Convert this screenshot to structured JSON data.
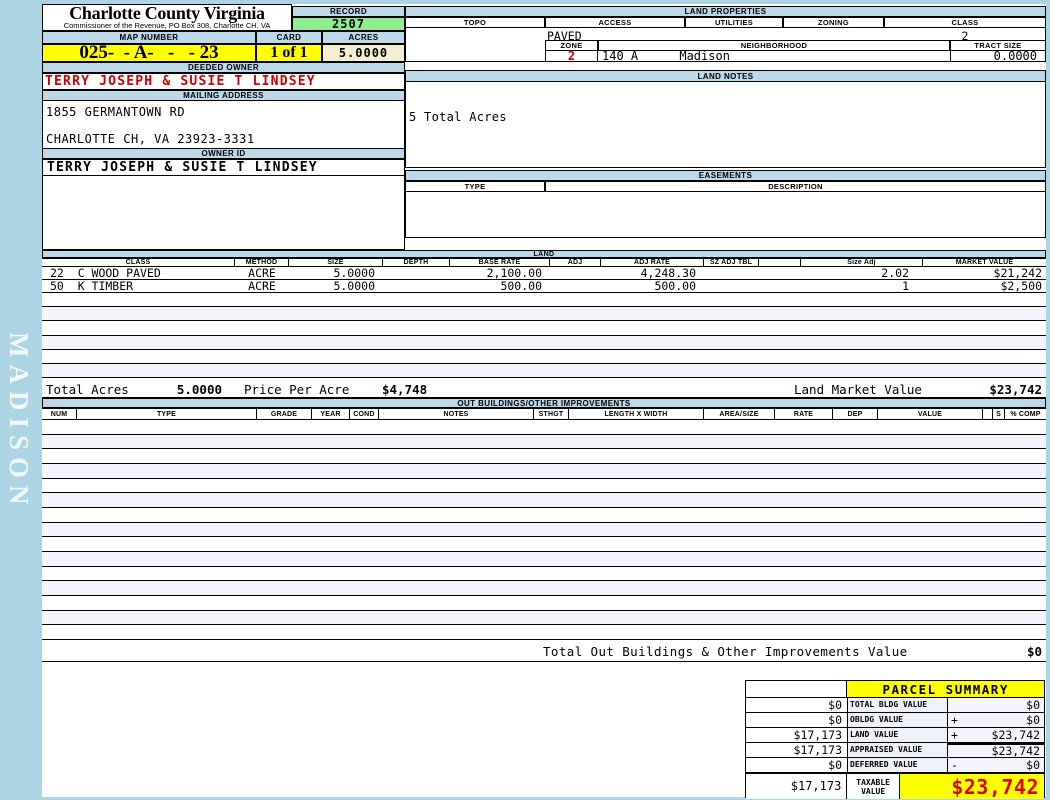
{
  "app": {
    "watermark": "MADISON"
  },
  "colors": {
    "page_blue": "#ABD4E4",
    "bar_blue": "#BDD8E9",
    "record_green": "#90EE90",
    "field_yellow": "#FFFF00",
    "acres_cream": "#F4EFD3",
    "alert_red": "#CC0000",
    "taxable_red": "#E00000",
    "stripe_lavender": "#F3F4FB"
  },
  "header": {
    "county_title": "Charlotte County Virginia",
    "commissioner_line": "Commissioner of the Revenue, PO Box 308, Charlotte CH, VA",
    "record_label": "RECORD",
    "record_value": "2507",
    "map_number_label": "MAP NUMBER",
    "map_number_value": "025-  - A-   -   - 23",
    "card_label": "CARD",
    "card_value": "1 of 1",
    "acres_label": "ACRES",
    "acres_value": "5.0000"
  },
  "owner": {
    "deeded_owner_label": "DEEDED OWNER",
    "deeded_owner_value": "TERRY JOSEPH & SUSIE T LINDSEY",
    "mailing_address_label": "MAILING ADDRESS",
    "address_line1": "1855 GERMANTOWN RD",
    "address_line2": "CHARLOTTE CH, VA 23923-3331",
    "owner_id_label": "OWNER ID",
    "owner_id_value": "TERRY JOSEPH & SUSIE T LINDSEY"
  },
  "land_properties": {
    "section_label": "LAND PROPERTIES",
    "topo_label": "TOPO",
    "access_label": "ACCESS",
    "utilities_label": "UTILITIES",
    "zoning_label": "ZONING",
    "class_label": "CLASS",
    "access_value": "PAVED",
    "class_value": "2",
    "zone_label": "ZONE",
    "neighborhood_label": "NEIGHBORHOOD",
    "tract_size_label": "TRACT SIZE",
    "zone_value": "2",
    "neighborhood_code": "140 A",
    "neighborhood_name": "Madison",
    "tract_size_value": "0.0000"
  },
  "land_notes": {
    "section_label": "LAND NOTES",
    "note": "5 Total Acres"
  },
  "easements": {
    "section_label": "EASEMENTS",
    "type_label": "TYPE",
    "description_label": "DESCRIPTION"
  },
  "land": {
    "section_label": "LAND",
    "headers": [
      "CLASS",
      "METHOD",
      "SIZE",
      "DEPTH",
      "BASE RATE",
      "ADJ",
      "ADJ RATE",
      "SZ ADJ TBL",
      "",
      "Size Adj",
      "MARKET VALUE"
    ],
    "rows": [
      {
        "class": "22  C WOOD PAVED",
        "method": "ACRE",
        "size": "5.0000",
        "depth": "",
        "base_rate": "2,100.00",
        "adj": "",
        "adj_rate": "4,248.30",
        "sz_adj_tbl": "",
        "size_adj": "2.02",
        "market_value": "$21,242"
      },
      {
        "class": "50  K TIMBER",
        "method": "ACRE",
        "size": "5.0000",
        "depth": "",
        "base_rate": "500.00",
        "adj": "",
        "adj_rate": "500.00",
        "sz_adj_tbl": "",
        "size_adj": "1",
        "market_value": "$2,500"
      }
    ],
    "totals": {
      "total_acres_label": "Total Acres",
      "total_acres_value": "5.0000",
      "price_per_acre_label": "Price Per Acre",
      "price_per_acre_value": "$4,748",
      "market_value_label": "Land Market Value",
      "market_value_value": "$23,742"
    }
  },
  "out_buildings": {
    "section_label": "OUT BUILDINGS/OTHER IMPROVEMENTS",
    "headers": [
      "NUM",
      "TYPE",
      "GRADE",
      "YEAR",
      "COND",
      "NOTES",
      "STHGT",
      "LENGTH X WIDTH",
      "AREA/SIZE",
      "RATE",
      "DEP",
      "VALUE",
      "S",
      "% COMP"
    ],
    "total_label": "Total Out Buildings & Other Improvements Value",
    "total_value": "$0"
  },
  "parcel_summary": {
    "title": "PARCEL SUMMARY",
    "rows": [
      {
        "prior": "$0",
        "label": "TOTAL BLDG VALUE",
        "op": "",
        "value": "$0"
      },
      {
        "prior": "$0",
        "label": "OBLDG VALUE",
        "op": "+",
        "value": "$0"
      },
      {
        "prior": "$17,173",
        "label": "LAND VALUE",
        "op": "+",
        "value": "$23,742"
      },
      {
        "prior": "$17,173",
        "label": "APPRAISED VALUE",
        "op": "",
        "value": "$23,742"
      },
      {
        "prior": "$0",
        "label": "DEFERRED VALUE",
        "op": "-",
        "value": "$0"
      },
      {
        "prior": "$17,173",
        "label": "TAXABLE VALUE",
        "op": "",
        "value": "$23,742"
      }
    ]
  }
}
